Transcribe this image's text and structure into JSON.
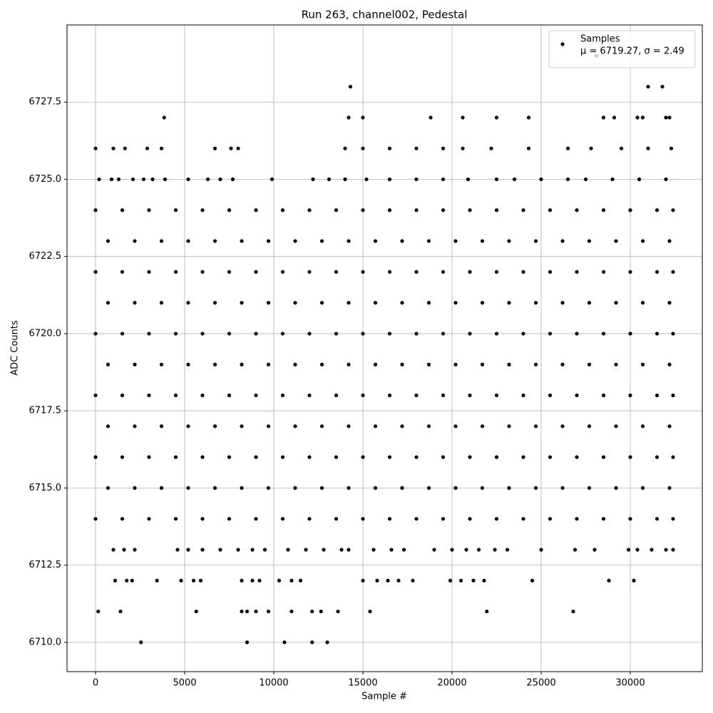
{
  "chart_data": {
    "type": "scatter",
    "title": "Run 263, channel002, Pedestal",
    "x_label": "Sample #",
    "y_label": "ADC Counts",
    "legend_note": "μ = 6719.27, σ = 2.49",
    "legend_position": "upper right",
    "grid": true,
    "xlim": [
      -1600,
      34040
    ],
    "ylim": [
      6709.05,
      6730
    ],
    "xticks": [
      0,
      5000,
      10000,
      15000,
      20000,
      25000,
      30000
    ],
    "yticks": [
      {
        "value": 6710,
        "label": "6710.0"
      },
      6712.5,
      {
        "value": 6715,
        "label": "6715.0"
      },
      6717.5,
      {
        "value": 6720,
        "label": "6720.0"
      },
      6722.5,
      {
        "value": 6725,
        "label": "6725.0"
      },
      6727.5
    ],
    "series": [
      {
        "name": "Samples",
        "color": "#000000",
        "x": [
          2550,
          8500,
          10600,
          12150,
          13000,
          150,
          1400,
          5650,
          8200,
          8500,
          9000,
          9700,
          11000,
          12150,
          12650,
          13600,
          15400,
          21950,
          26800,
          1100,
          1750,
          2050,
          3450,
          4800,
          5500,
          5900,
          8200,
          8800,
          9200,
          10300,
          11000,
          11500,
          15000,
          15800,
          16400,
          17000,
          17800,
          19900,
          20500,
          21200,
          21800,
          24500,
          28800,
          30200,
          1000,
          1600,
          2200,
          4600,
          5200,
          6000,
          7000,
          8000,
          8800,
          9500,
          10800,
          11800,
          12800,
          13800,
          14200,
          15600,
          16600,
          17300,
          19000,
          20000,
          20800,
          21500,
          22400,
          23100,
          25000,
          26900,
          28000,
          29900,
          30400,
          31200,
          32000,
          32400,
          0,
          1500,
          3000,
          4500,
          6000,
          7500,
          9000,
          10500,
          12000,
          13500,
          15000,
          16500,
          18000,
          19500,
          21000,
          22500,
          24000,
          25500,
          27000,
          28500,
          30000,
          31500,
          32400,
          700,
          2200,
          3700,
          5200,
          6700,
          8200,
          9700,
          11200,
          12700,
          14200,
          15700,
          17200,
          18700,
          20200,
          21700,
          23200,
          24700,
          26200,
          27700,
          29200,
          30700,
          32200,
          0,
          1500,
          3000,
          4500,
          6000,
          7500,
          9000,
          10500,
          12000,
          13500,
          15000,
          16500,
          18000,
          19500,
          21000,
          22500,
          24000,
          25500,
          27000,
          28500,
          30000,
          31500,
          32400,
          700,
          2200,
          3700,
          5200,
          6700,
          8200,
          9700,
          11200,
          12700,
          14200,
          15700,
          17200,
          18700,
          20200,
          21700,
          23200,
          24700,
          26200,
          27700,
          29200,
          30700,
          32200,
          0,
          1500,
          3000,
          4500,
          6000,
          7500,
          9000,
          10500,
          12000,
          13500,
          15000,
          16500,
          18000,
          19500,
          21000,
          22500,
          24000,
          25500,
          27000,
          28500,
          30000,
          31500,
          32400,
          700,
          2200,
          3700,
          5200,
          6700,
          8200,
          9700,
          11200,
          12700,
          14200,
          15700,
          17200,
          18700,
          20200,
          21700,
          23200,
          24700,
          26200,
          27700,
          29200,
          30700,
          32200,
          0,
          1500,
          3000,
          4500,
          6000,
          7500,
          9000,
          10500,
          12000,
          13500,
          15000,
          16500,
          18000,
          19500,
          21000,
          22500,
          24000,
          25500,
          27000,
          28500,
          30000,
          31500,
          32400,
          700,
          2200,
          3700,
          5200,
          6700,
          8200,
          9700,
          11200,
          12700,
          14200,
          15700,
          17200,
          18700,
          20200,
          21700,
          23200,
          24700,
          26200,
          27700,
          29200,
          30700,
          32200,
          0,
          1500,
          3000,
          4500,
          6000,
          7500,
          9000,
          10500,
          12000,
          13500,
          15000,
          16500,
          18000,
          19500,
          21000,
          22500,
          24000,
          25500,
          27000,
          28500,
          30000,
          31500,
          32400,
          700,
          2200,
          3700,
          5200,
          6700,
          8200,
          9700,
          11200,
          12700,
          14200,
          15700,
          17200,
          18700,
          20200,
          21700,
          23200,
          24700,
          26200,
          27700,
          29200,
          30700,
          32200,
          0,
          1500,
          3000,
          4500,
          6000,
          7500,
          9000,
          10500,
          12000,
          13500,
          15000,
          16500,
          18000,
          19500,
          21000,
          22500,
          24000,
          25500,
          27000,
          28500,
          30000,
          31500,
          32400,
          200,
          900,
          1300,
          2100,
          2700,
          3200,
          3900,
          5200,
          6300,
          7000,
          7700,
          9900,
          12200,
          13100,
          14000,
          15200,
          16500,
          18000,
          19500,
          20900,
          22500,
          23500,
          25000,
          26500,
          27500,
          29000,
          30500,
          32000,
          0,
          1000,
          1650,
          2900,
          3700,
          6700,
          7600,
          8000,
          14000,
          15000,
          16500,
          18000,
          19500,
          20600,
          22200,
          24300,
          26500,
          27800,
          29500,
          31000,
          32300,
          3850,
          14200,
          15000,
          18800,
          20600,
          22500,
          24300,
          28500,
          29100,
          30400,
          30700,
          32000,
          32200,
          14300,
          31000,
          31800,
          28100
        ],
        "values": [
          6710,
          6710,
          6710,
          6710,
          6710,
          6711,
          6711,
          6711,
          6711,
          6711,
          6711,
          6711,
          6711,
          6711,
          6711,
          6711,
          6711,
          6711,
          6711,
          6712,
          6712,
          6712,
          6712,
          6712,
          6712,
          6712,
          6712,
          6712,
          6712,
          6712,
          6712,
          6712,
          6712,
          6712,
          6712,
          6712,
          6712,
          6712,
          6712,
          6712,
          6712,
          6712,
          6712,
          6712,
          6713,
          6713,
          6713,
          6713,
          6713,
          6713,
          6713,
          6713,
          6713,
          6713,
          6713,
          6713,
          6713,
          6713,
          6713,
          6713,
          6713,
          6713,
          6713,
          6713,
          6713,
          6713,
          6713,
          6713,
          6713,
          6713,
          6713,
          6713,
          6713,
          6713,
          6713,
          6713,
          6714,
          6714,
          6714,
          6714,
          6714,
          6714,
          6714,
          6714,
          6714,
          6714,
          6714,
          6714,
          6714,
          6714,
          6714,
          6714,
          6714,
          6714,
          6714,
          6714,
          6714,
          6714,
          6714,
          6715,
          6715,
          6715,
          6715,
          6715,
          6715,
          6715,
          6715,
          6715,
          6715,
          6715,
          6715,
          6715,
          6715,
          6715,
          6715,
          6715,
          6715,
          6715,
          6715,
          6715,
          6715,
          6716,
          6716,
          6716,
          6716,
          6716,
          6716,
          6716,
          6716,
          6716,
          6716,
          6716,
          6716,
          6716,
          6716,
          6716,
          6716,
          6716,
          6716,
          6716,
          6716,
          6716,
          6716,
          6716,
          6717,
          6717,
          6717,
          6717,
          6717,
          6717,
          6717,
          6717,
          6717,
          6717,
          6717,
          6717,
          6717,
          6717,
          6717,
          6717,
          6717,
          6717,
          6717,
          6717,
          6717,
          6717,
          6718,
          6718,
          6718,
          6718,
          6718,
          6718,
          6718,
          6718,
          6718,
          6718,
          6718,
          6718,
          6718,
          6718,
          6718,
          6718,
          6718,
          6718,
          6718,
          6718,
          6718,
          6718,
          6718,
          6719,
          6719,
          6719,
          6719,
          6719,
          6719,
          6719,
          6719,
          6719,
          6719,
          6719,
          6719,
          6719,
          6719,
          6719,
          6719,
          6719,
          6719,
          6719,
          6719,
          6719,
          6719,
          6720,
          6720,
          6720,
          6720,
          6720,
          6720,
          6720,
          6720,
          6720,
          6720,
          6720,
          6720,
          6720,
          6720,
          6720,
          6720,
          6720,
          6720,
          6720,
          6720,
          6720,
          6720,
          6720,
          6721,
          6721,
          6721,
          6721,
          6721,
          6721,
          6721,
          6721,
          6721,
          6721,
          6721,
          6721,
          6721,
          6721,
          6721,
          6721,
          6721,
          6721,
          6721,
          6721,
          6721,
          6721,
          6722,
          6722,
          6722,
          6722,
          6722,
          6722,
          6722,
          6722,
          6722,
          6722,
          6722,
          6722,
          6722,
          6722,
          6722,
          6722,
          6722,
          6722,
          6722,
          6722,
          6722,
          6722,
          6722,
          6723,
          6723,
          6723,
          6723,
          6723,
          6723,
          6723,
          6723,
          6723,
          6723,
          6723,
          6723,
          6723,
          6723,
          6723,
          6723,
          6723,
          6723,
          6723,
          6723,
          6723,
          6723,
          6724,
          6724,
          6724,
          6724,
          6724,
          6724,
          6724,
          6724,
          6724,
          6724,
          6724,
          6724,
          6724,
          6724,
          6724,
          6724,
          6724,
          6724,
          6724,
          6724,
          6724,
          6724,
          6724,
          6725,
          6725,
          6725,
          6725,
          6725,
          6725,
          6725,
          6725,
          6725,
          6725,
          6725,
          6725,
          6725,
          6725,
          6725,
          6725,
          6725,
          6725,
          6725,
          6725,
          6725,
          6725,
          6725,
          6725,
          6725,
          6725,
          6725,
          6725,
          6726,
          6726,
          6726,
          6726,
          6726,
          6726,
          6726,
          6726,
          6726,
          6726,
          6726,
          6726,
          6726,
          6726,
          6726,
          6726,
          6726,
          6726,
          6726,
          6726,
          6726,
          6727,
          6727,
          6727,
          6727,
          6727,
          6727,
          6727,
          6727,
          6727,
          6727,
          6727,
          6727,
          6727,
          6728,
          6728,
          6728,
          6729
        ]
      }
    ]
  }
}
